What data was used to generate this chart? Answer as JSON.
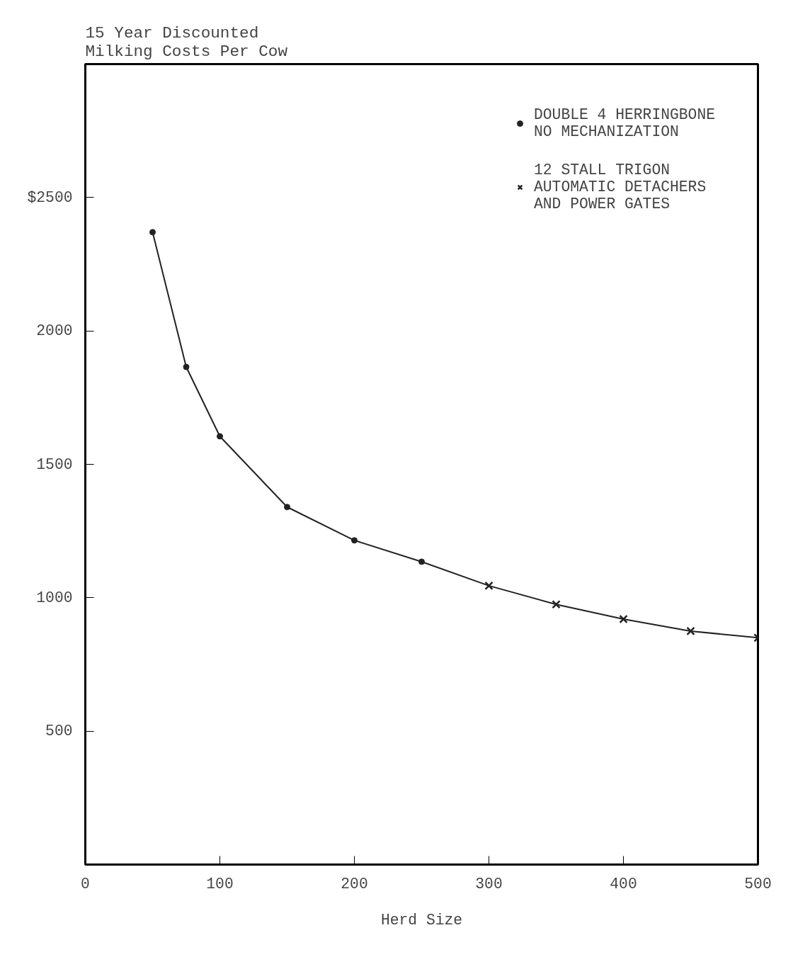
{
  "chart_data": {
    "type": "scatter",
    "title": "15 Year Discounted\nMilking Costs Per Cow",
    "xlabel": "Herd Size",
    "series": [
      {
        "name": "DOUBLE 4 HERRINGBONE\nNO MECHANIZATION",
        "marker": "circle",
        "color": "#222222",
        "x": [
          50,
          75,
          100,
          150,
          200,
          250
        ],
        "values": [
          2370,
          1865,
          1605,
          1340,
          1215,
          1135
        ]
      },
      {
        "name": "12 STALL TRIGON\nAUTOMATIC DETACHERS\nAND POWER GATES",
        "marker": "cross",
        "color": "#222222",
        "x": [
          300,
          350,
          400,
          450,
          500
        ],
        "values": [
          1045,
          975,
          920,
          875,
          850
        ]
      },
      {
        "type": "line",
        "color": "#222222",
        "x": [
          50,
          75,
          100,
          150,
          200,
          250,
          300,
          350,
          400,
          450,
          500
        ],
        "values": [
          2370,
          1865,
          1605,
          1340,
          1215,
          1135,
          1045,
          975,
          920,
          875,
          850
        ]
      }
    ],
    "xlim": [
      0,
      500
    ],
    "ylim": [
      0,
      3000
    ],
    "xticks": [
      0,
      100,
      200,
      300,
      400,
      500
    ],
    "yticks": [
      500,
      1000,
      1500,
      2000,
      {
        "value": 2500,
        "label": "$2500"
      }
    ],
    "grid": false,
    "legend": "top right"
  }
}
